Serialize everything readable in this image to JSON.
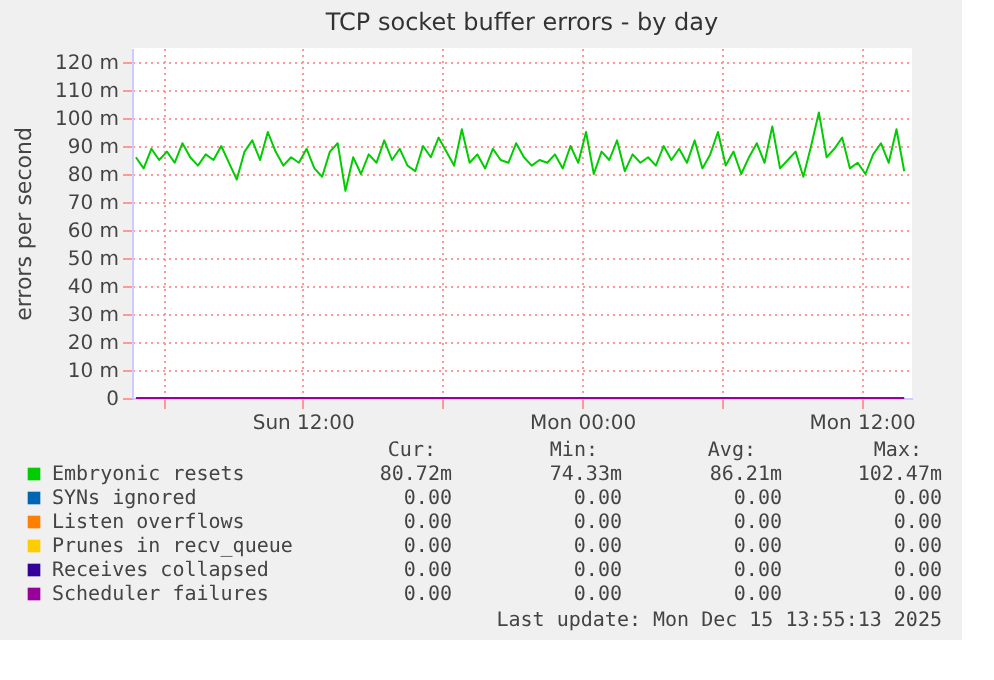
{
  "chart_data": {
    "type": "line",
    "title": "TCP socket buffer errors - by day",
    "ylabel": "errors per second",
    "x": [
      "2025-12-14T04:50",
      "2025-12-14T05:10",
      "2025-12-14T05:30",
      "2025-12-14T05:50",
      "2025-12-14T06:10",
      "2025-12-14T06:30",
      "2025-12-14T06:50",
      "2025-12-14T07:10",
      "2025-12-14T07:30",
      "2025-12-14T07:50",
      "2025-12-14T08:10",
      "2025-12-14T08:30",
      "2025-12-14T08:50",
      "2025-12-14T09:10",
      "2025-12-14T09:30",
      "2025-12-14T09:50",
      "2025-12-14T10:10",
      "2025-12-14T10:30",
      "2025-12-14T10:50",
      "2025-12-14T11:10",
      "2025-12-14T11:30",
      "2025-12-14T11:50",
      "2025-12-14T12:10",
      "2025-12-14T12:30",
      "2025-12-14T12:50",
      "2025-12-14T13:10",
      "2025-12-14T13:30",
      "2025-12-14T13:50",
      "2025-12-14T14:10",
      "2025-12-14T14:30",
      "2025-12-14T14:50",
      "2025-12-14T15:10",
      "2025-12-14T15:30",
      "2025-12-14T15:50",
      "2025-12-14T16:10",
      "2025-12-14T16:30",
      "2025-12-14T16:50",
      "2025-12-14T17:10",
      "2025-12-14T17:30",
      "2025-12-14T17:50",
      "2025-12-14T18:10",
      "2025-12-14T18:30",
      "2025-12-14T18:50",
      "2025-12-14T19:10",
      "2025-12-14T19:30",
      "2025-12-14T19:50",
      "2025-12-14T20:10",
      "2025-12-14T20:30",
      "2025-12-14T20:50",
      "2025-12-14T21:10",
      "2025-12-14T21:30",
      "2025-12-14T21:50",
      "2025-12-14T22:10",
      "2025-12-14T22:30",
      "2025-12-14T22:50",
      "2025-12-14T23:10",
      "2025-12-14T23:30",
      "2025-12-14T23:50",
      "2025-12-15T00:10",
      "2025-12-15T00:30",
      "2025-12-15T00:50",
      "2025-12-15T01:10",
      "2025-12-15T01:30",
      "2025-12-15T01:50",
      "2025-12-15T02:10",
      "2025-12-15T02:30",
      "2025-12-15T02:50",
      "2025-12-15T03:10",
      "2025-12-15T03:30",
      "2025-12-15T03:50",
      "2025-12-15T04:10",
      "2025-12-15T04:30",
      "2025-12-15T04:50",
      "2025-12-15T05:10",
      "2025-12-15T05:30",
      "2025-12-15T05:50",
      "2025-12-15T06:10",
      "2025-12-15T06:30",
      "2025-12-15T06:50",
      "2025-12-15T07:10",
      "2025-12-15T07:30",
      "2025-12-15T07:50",
      "2025-12-15T08:10",
      "2025-12-15T08:30",
      "2025-12-15T08:50",
      "2025-12-15T09:10",
      "2025-12-15T09:30",
      "2025-12-15T09:50",
      "2025-12-15T10:10",
      "2025-12-15T10:30",
      "2025-12-15T10:50",
      "2025-12-15T11:10",
      "2025-12-15T11:30",
      "2025-12-15T11:50",
      "2025-12-15T12:10",
      "2025-12-15T12:30",
      "2025-12-15T12:50",
      "2025-12-15T13:10",
      "2025-12-15T13:30",
      "2025-12-15T13:50"
    ],
    "series": [
      {
        "name": "Embryonic resets",
        "color": "#00cc00",
        "values": [
          86,
          82,
          89,
          85,
          88,
          84,
          91,
          86,
          83,
          87,
          85,
          90,
          84,
          78,
          88,
          92,
          85,
          95,
          88,
          83,
          86,
          84,
          89,
          82,
          79,
          88,
          91,
          74,
          86,
          80,
          87,
          84,
          92,
          85,
          89,
          83,
          81,
          90,
          86,
          93,
          88,
          83,
          96,
          84,
          87,
          82,
          89,
          85,
          84,
          91,
          86,
          83,
          85,
          84,
          87,
          82,
          90,
          84,
          95,
          80,
          88,
          85,
          92,
          81,
          87,
          84,
          86,
          83,
          90,
          85,
          89,
          84,
          92,
          82,
          87,
          95,
          83,
          88,
          80,
          86,
          91,
          84,
          97,
          82,
          85,
          88,
          79,
          90,
          102,
          86,
          89,
          93,
          82,
          84,
          80,
          87,
          91,
          84,
          96,
          81
        ]
      },
      {
        "name": "SYNs ignored",
        "color": "#0066b3",
        "values": [
          null,
          null,
          null,
          null,
          null,
          null,
          null,
          null,
          null,
          null,
          null,
          null,
          null,
          null,
          null,
          null,
          null,
          null,
          null,
          null,
          null,
          null,
          null,
          null,
          null,
          null,
          null,
          null,
          null,
          null,
          null,
          null,
          null,
          null,
          null,
          null,
          null,
          null,
          null,
          null,
          null,
          null,
          null,
          null,
          null,
          null,
          null,
          null,
          null,
          null,
          null,
          null,
          null,
          null,
          null,
          null,
          null,
          null,
          null,
          null,
          null,
          null,
          null,
          null,
          null,
          null,
          null,
          null,
          null,
          null,
          null,
          null,
          null,
          null,
          null,
          null,
          null,
          null,
          null,
          null,
          null,
          null,
          null,
          null,
          null,
          null,
          null,
          null,
          null,
          null,
          null,
          null,
          null,
          null,
          null,
          null,
          null,
          null,
          null,
          null
        ]
      },
      {
        "name": "Listen overflows",
        "color": "#ff8000",
        "values": [
          null,
          null,
          null,
          null,
          null,
          null,
          null,
          null,
          null,
          null,
          null,
          null,
          null,
          null,
          null,
          null,
          null,
          null,
          null,
          null,
          null,
          null,
          null,
          null,
          null,
          null,
          null,
          null,
          null,
          null,
          null,
          null,
          null,
          null,
          null,
          null,
          null,
          null,
          null,
          null,
          null,
          null,
          null,
          null,
          null,
          null,
          null,
          null,
          null,
          null,
          null,
          null,
          null,
          null,
          null,
          null,
          null,
          null,
          null,
          null,
          null,
          null,
          null,
          null,
          null,
          null,
          null,
          null,
          null,
          null,
          null,
          null,
          null,
          null,
          null,
          null,
          null,
          null,
          null,
          null,
          null,
          null,
          null,
          null,
          null,
          null,
          null,
          null,
          null,
          null,
          null,
          null,
          null,
          null,
          null,
          null,
          null,
          null,
          null,
          null
        ]
      },
      {
        "name": "Prunes in recv_queue",
        "color": "#ffcc00",
        "values": [
          null,
          null,
          null,
          null,
          null,
          null,
          null,
          null,
          null,
          null,
          null,
          null,
          null,
          null,
          null,
          null,
          null,
          null,
          null,
          null,
          null,
          null,
          null,
          null,
          null,
          null,
          null,
          null,
          null,
          null,
          null,
          null,
          null,
          null,
          null,
          null,
          null,
          null,
          null,
          null,
          null,
          null,
          null,
          null,
          null,
          null,
          null,
          null,
          null,
          null,
          null,
          null,
          null,
          null,
          null,
          null,
          null,
          null,
          null,
          null,
          null,
          null,
          null,
          null,
          null,
          null,
          null,
          null,
          null,
          null,
          null,
          null,
          null,
          null,
          null,
          null,
          null,
          null,
          null,
          null,
          null,
          null,
          null,
          null,
          null,
          null,
          null,
          null,
          null,
          null,
          null,
          null,
          null,
          null,
          null,
          null,
          null,
          null,
          null,
          null
        ]
      },
      {
        "name": "Receives collapsed",
        "color": "#330099",
        "values": [
          null,
          null,
          null,
          null,
          null,
          null,
          null,
          null,
          null,
          null,
          null,
          null,
          null,
          null,
          null,
          null,
          null,
          null,
          null,
          null,
          null,
          null,
          null,
          null,
          null,
          null,
          null,
          null,
          null,
          null,
          null,
          null,
          null,
          null,
          null,
          null,
          null,
          null,
          null,
          null,
          null,
          null,
          null,
          null,
          null,
          null,
          null,
          null,
          null,
          null,
          null,
          null,
          null,
          null,
          null,
          null,
          null,
          null,
          null,
          null,
          null,
          null,
          null,
          null,
          null,
          null,
          null,
          null,
          null,
          null,
          null,
          null,
          null,
          null,
          null,
          null,
          null,
          null,
          null,
          null,
          null,
          null,
          null,
          null,
          null,
          null,
          null,
          null,
          null,
          null,
          null,
          null,
          null,
          null,
          null,
          null,
          null,
          null,
          null,
          null
        ]
      },
      {
        "name": "Scheduler failures",
        "color": "#990099",
        "x": [
          "2025-12-14T04:50",
          "2025-12-15T13:50"
        ],
        "values": [
          0,
          0
        ]
      }
    ],
    "xlim": [
      "2025-12-14T04:40",
      "2025-12-15T14:10"
    ],
    "xticks": [
      {
        "value": "2025-12-14T06:00",
        "label": null
      },
      {
        "value": "2025-12-14T12:00",
        "label": "Sun 12:00"
      },
      {
        "value": "2025-12-14T18:00",
        "label": null
      },
      {
        "value": "2025-12-15T00:00",
        "label": "Mon 00:00"
      },
      {
        "value": "2025-12-15T06:00",
        "label": null
      },
      {
        "value": "2025-12-15T12:00",
        "label": "Mon 12:00"
      }
    ],
    "ylim": [
      0,
      125
    ],
    "yticks": [
      0,
      {
        "value": 10,
        "label": "10 m"
      },
      {
        "value": 20,
        "label": "20 m"
      },
      {
        "value": 30,
        "label": "30 m"
      },
      {
        "value": 40,
        "label": "40 m"
      },
      {
        "value": 50,
        "label": "50 m"
      },
      {
        "value": 60,
        "label": "60 m"
      },
      {
        "value": 70,
        "label": "70 m"
      },
      {
        "value": 80,
        "label": "80 m"
      },
      {
        "value": 90,
        "label": "90 m"
      },
      {
        "value": 100,
        "label": "100 m"
      },
      {
        "value": 110,
        "label": "110 m"
      },
      {
        "value": 120,
        "label": "120 m"
      }
    ],
    "grid": true,
    "legend": "bottom",
    "annotations": [
      "Cur:",
      "Min:",
      "Avg:",
      "Max:",
      "80.72m",
      "74.33m",
      "86.21m",
      "102.47m",
      "0.00",
      "0.00",
      "0.00",
      "0.00",
      "0.00",
      "0.00",
      "0.00",
      "0.00",
      "0.00",
      "0.00",
      "0.00",
      "0.00",
      "0.00",
      "0.00",
      "0.00",
      "0.00",
      "0.00",
      "0.00",
      "0.00",
      "0.00",
      "Last update:  Mon Dec 15 13:55:13 2025"
    ]
  }
}
